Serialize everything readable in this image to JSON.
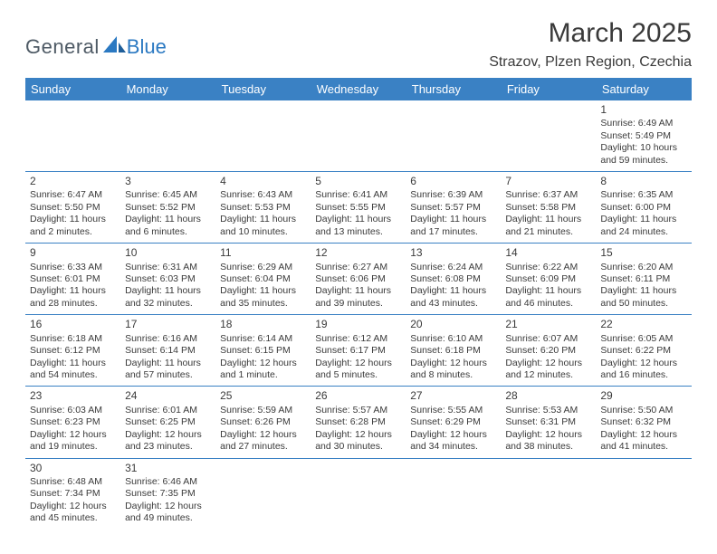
{
  "logo": {
    "part1": "General",
    "part2": "Blue",
    "brand_color": "#2b79c2",
    "text_color": "#4e5a65"
  },
  "title": "March 2025",
  "location": "Strazov, Plzen Region, Czechia",
  "colors": {
    "header_bg": "#3a81c4",
    "header_fg": "#ffffff",
    "border": "#3a81c4",
    "text": "#3a3a3a",
    "bg": "#ffffff"
  },
  "font": {
    "title_size": 30,
    "location_size": 16,
    "dayhead_size": 13,
    "body_size": 10.5,
    "daynum_size": 12
  },
  "dayNames": [
    "Sunday",
    "Monday",
    "Tuesday",
    "Wednesday",
    "Thursday",
    "Friday",
    "Saturday"
  ],
  "weeks": [
    [
      null,
      null,
      null,
      null,
      null,
      null,
      {
        "n": "1",
        "sunrise": "Sunrise: 6:49 AM",
        "sunset": "Sunset: 5:49 PM",
        "daylight": "Daylight: 10 hours and 59 minutes."
      }
    ],
    [
      {
        "n": "2",
        "sunrise": "Sunrise: 6:47 AM",
        "sunset": "Sunset: 5:50 PM",
        "daylight": "Daylight: 11 hours and 2 minutes."
      },
      {
        "n": "3",
        "sunrise": "Sunrise: 6:45 AM",
        "sunset": "Sunset: 5:52 PM",
        "daylight": "Daylight: 11 hours and 6 minutes."
      },
      {
        "n": "4",
        "sunrise": "Sunrise: 6:43 AM",
        "sunset": "Sunset: 5:53 PM",
        "daylight": "Daylight: 11 hours and 10 minutes."
      },
      {
        "n": "5",
        "sunrise": "Sunrise: 6:41 AM",
        "sunset": "Sunset: 5:55 PM",
        "daylight": "Daylight: 11 hours and 13 minutes."
      },
      {
        "n": "6",
        "sunrise": "Sunrise: 6:39 AM",
        "sunset": "Sunset: 5:57 PM",
        "daylight": "Daylight: 11 hours and 17 minutes."
      },
      {
        "n": "7",
        "sunrise": "Sunrise: 6:37 AM",
        "sunset": "Sunset: 5:58 PM",
        "daylight": "Daylight: 11 hours and 21 minutes."
      },
      {
        "n": "8",
        "sunrise": "Sunrise: 6:35 AM",
        "sunset": "Sunset: 6:00 PM",
        "daylight": "Daylight: 11 hours and 24 minutes."
      }
    ],
    [
      {
        "n": "9",
        "sunrise": "Sunrise: 6:33 AM",
        "sunset": "Sunset: 6:01 PM",
        "daylight": "Daylight: 11 hours and 28 minutes."
      },
      {
        "n": "10",
        "sunrise": "Sunrise: 6:31 AM",
        "sunset": "Sunset: 6:03 PM",
        "daylight": "Daylight: 11 hours and 32 minutes."
      },
      {
        "n": "11",
        "sunrise": "Sunrise: 6:29 AM",
        "sunset": "Sunset: 6:04 PM",
        "daylight": "Daylight: 11 hours and 35 minutes."
      },
      {
        "n": "12",
        "sunrise": "Sunrise: 6:27 AM",
        "sunset": "Sunset: 6:06 PM",
        "daylight": "Daylight: 11 hours and 39 minutes."
      },
      {
        "n": "13",
        "sunrise": "Sunrise: 6:24 AM",
        "sunset": "Sunset: 6:08 PM",
        "daylight": "Daylight: 11 hours and 43 minutes."
      },
      {
        "n": "14",
        "sunrise": "Sunrise: 6:22 AM",
        "sunset": "Sunset: 6:09 PM",
        "daylight": "Daylight: 11 hours and 46 minutes."
      },
      {
        "n": "15",
        "sunrise": "Sunrise: 6:20 AM",
        "sunset": "Sunset: 6:11 PM",
        "daylight": "Daylight: 11 hours and 50 minutes."
      }
    ],
    [
      {
        "n": "16",
        "sunrise": "Sunrise: 6:18 AM",
        "sunset": "Sunset: 6:12 PM",
        "daylight": "Daylight: 11 hours and 54 minutes."
      },
      {
        "n": "17",
        "sunrise": "Sunrise: 6:16 AM",
        "sunset": "Sunset: 6:14 PM",
        "daylight": "Daylight: 11 hours and 57 minutes."
      },
      {
        "n": "18",
        "sunrise": "Sunrise: 6:14 AM",
        "sunset": "Sunset: 6:15 PM",
        "daylight": "Daylight: 12 hours and 1 minute."
      },
      {
        "n": "19",
        "sunrise": "Sunrise: 6:12 AM",
        "sunset": "Sunset: 6:17 PM",
        "daylight": "Daylight: 12 hours and 5 minutes."
      },
      {
        "n": "20",
        "sunrise": "Sunrise: 6:10 AM",
        "sunset": "Sunset: 6:18 PM",
        "daylight": "Daylight: 12 hours and 8 minutes."
      },
      {
        "n": "21",
        "sunrise": "Sunrise: 6:07 AM",
        "sunset": "Sunset: 6:20 PM",
        "daylight": "Daylight: 12 hours and 12 minutes."
      },
      {
        "n": "22",
        "sunrise": "Sunrise: 6:05 AM",
        "sunset": "Sunset: 6:22 PM",
        "daylight": "Daylight: 12 hours and 16 minutes."
      }
    ],
    [
      {
        "n": "23",
        "sunrise": "Sunrise: 6:03 AM",
        "sunset": "Sunset: 6:23 PM",
        "daylight": "Daylight: 12 hours and 19 minutes."
      },
      {
        "n": "24",
        "sunrise": "Sunrise: 6:01 AM",
        "sunset": "Sunset: 6:25 PM",
        "daylight": "Daylight: 12 hours and 23 minutes."
      },
      {
        "n": "25",
        "sunrise": "Sunrise: 5:59 AM",
        "sunset": "Sunset: 6:26 PM",
        "daylight": "Daylight: 12 hours and 27 minutes."
      },
      {
        "n": "26",
        "sunrise": "Sunrise: 5:57 AM",
        "sunset": "Sunset: 6:28 PM",
        "daylight": "Daylight: 12 hours and 30 minutes."
      },
      {
        "n": "27",
        "sunrise": "Sunrise: 5:55 AM",
        "sunset": "Sunset: 6:29 PM",
        "daylight": "Daylight: 12 hours and 34 minutes."
      },
      {
        "n": "28",
        "sunrise": "Sunrise: 5:53 AM",
        "sunset": "Sunset: 6:31 PM",
        "daylight": "Daylight: 12 hours and 38 minutes."
      },
      {
        "n": "29",
        "sunrise": "Sunrise: 5:50 AM",
        "sunset": "Sunset: 6:32 PM",
        "daylight": "Daylight: 12 hours and 41 minutes."
      }
    ],
    [
      {
        "n": "30",
        "sunrise": "Sunrise: 6:48 AM",
        "sunset": "Sunset: 7:34 PM",
        "daylight": "Daylight: 12 hours and 45 minutes."
      },
      {
        "n": "31",
        "sunrise": "Sunrise: 6:46 AM",
        "sunset": "Sunset: 7:35 PM",
        "daylight": "Daylight: 12 hours and 49 minutes."
      },
      null,
      null,
      null,
      null,
      null
    ]
  ]
}
